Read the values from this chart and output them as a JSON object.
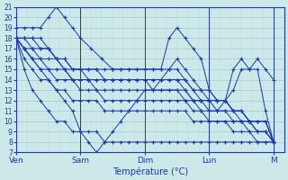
{
  "xlabel": "Température (°C)",
  "bg_color": "#cce8e8",
  "grid_major_color": "#aacccc",
  "grid_minor_color": "#bbdddd",
  "line_color": "#1a3aad",
  "ylim": [
    7,
    21
  ],
  "xlim": [
    0,
    100
  ],
  "yticks": [
    7,
    8,
    9,
    10,
    11,
    12,
    13,
    14,
    15,
    16,
    17,
    18,
    19,
    20,
    21
  ],
  "day_labels": [
    "Ven",
    "Sam",
    "Dim",
    "Lun",
    "M"
  ],
  "day_positions": [
    0,
    24,
    48,
    72,
    96
  ],
  "lines": [
    {
      "x": [
        0,
        3,
        6,
        9,
        12,
        15,
        18,
        21,
        24,
        27,
        30,
        33,
        36,
        39,
        42,
        45,
        48,
        51,
        54,
        57,
        60,
        63,
        66,
        69,
        72,
        75,
        78,
        81,
        84,
        87,
        90,
        93,
        96
      ],
      "y": [
        18,
        18,
        18,
        18,
        17,
        16,
        15,
        14,
        14,
        14,
        14,
        14,
        14,
        14,
        14,
        14,
        14,
        14,
        14,
        14,
        14,
        13,
        12,
        12,
        12,
        12,
        12,
        11,
        11,
        10,
        10,
        10,
        8
      ]
    },
    {
      "x": [
        0,
        3,
        6,
        9,
        12,
        15,
        18,
        21,
        24,
        27,
        30,
        33,
        36,
        39,
        42,
        45,
        48,
        51,
        54,
        57,
        60,
        63,
        66,
        69,
        72,
        75,
        78,
        81,
        84,
        87,
        90,
        93,
        96
      ],
      "y": [
        18,
        18,
        18,
        17,
        17,
        16,
        16,
        15,
        15,
        15,
        15,
        15,
        15,
        15,
        15,
        15,
        15,
        15,
        15,
        15,
        15,
        14,
        13,
        13,
        13,
        12,
        12,
        11,
        11,
        10,
        10,
        10,
        8
      ]
    },
    {
      "x": [
        0,
        3,
        6,
        9,
        12,
        15,
        18,
        21,
        24,
        27,
        30,
        33,
        36,
        39,
        42,
        45,
        48,
        51,
        54,
        57,
        60,
        63,
        66,
        69,
        72,
        75,
        78,
        81,
        84,
        87,
        90,
        93,
        96
      ],
      "y": [
        18,
        18,
        17,
        17,
        17,
        16,
        16,
        15,
        15,
        15,
        15,
        14,
        14,
        14,
        14,
        14,
        14,
        14,
        14,
        14,
        14,
        14,
        13,
        12,
        12,
        12,
        12,
        11,
        11,
        10,
        10,
        10,
        8
      ]
    },
    {
      "x": [
        0,
        3,
        6,
        9,
        12,
        15,
        18,
        21,
        24,
        27,
        30,
        33,
        36,
        39,
        42,
        45,
        48,
        51,
        54,
        57,
        60,
        63,
        66,
        69,
        72,
        75,
        78,
        81,
        84,
        87,
        90,
        93,
        96
      ],
      "y": [
        18,
        17,
        17,
        16,
        16,
        16,
        15,
        15,
        15,
        14,
        14,
        14,
        14,
        14,
        14,
        14,
        14,
        13,
        13,
        13,
        13,
        13,
        12,
        12,
        11,
        11,
        11,
        11,
        10,
        10,
        9,
        9,
        8
      ]
    },
    {
      "x": [
        0,
        3,
        6,
        9,
        12,
        15,
        18,
        21,
        24,
        27,
        30,
        33,
        36,
        39,
        42,
        45,
        48,
        51,
        54,
        57,
        60,
        63,
        66,
        69,
        72,
        75,
        78,
        81,
        84,
        87,
        90,
        93,
        96
      ],
      "y": [
        18,
        17,
        16,
        16,
        15,
        15,
        15,
        14,
        14,
        14,
        13,
        13,
        13,
        13,
        13,
        13,
        13,
        13,
        13,
        13,
        13,
        12,
        12,
        11,
        11,
        11,
        11,
        10,
        10,
        10,
        9,
        9,
        8
      ]
    },
    {
      "x": [
        0,
        3,
        6,
        9,
        12,
        15,
        18,
        21,
        24,
        27,
        30,
        33,
        36,
        39,
        42,
        45,
        48,
        51,
        54,
        57,
        60,
        63,
        66,
        69,
        72,
        75,
        78,
        81,
        84,
        87,
        90,
        93,
        96
      ],
      "y": [
        18,
        17,
        16,
        15,
        15,
        14,
        14,
        14,
        13,
        13,
        13,
        12,
        12,
        12,
        12,
        12,
        12,
        12,
        12,
        12,
        12,
        12,
        11,
        11,
        10,
        10,
        10,
        10,
        10,
        9,
        9,
        9,
        8
      ]
    },
    {
      "x": [
        0,
        3,
        6,
        9,
        12,
        15,
        18,
        21,
        24,
        27,
        30,
        33,
        36,
        39,
        42,
        45,
        48,
        51,
        54,
        57,
        60,
        63,
        66,
        69,
        72,
        75,
        78,
        81,
        84,
        87,
        90,
        93,
        96
      ],
      "y": [
        18,
        16,
        15,
        14,
        14,
        13,
        13,
        12,
        12,
        12,
        12,
        11,
        11,
        11,
        11,
        11,
        11,
        11,
        11,
        11,
        11,
        11,
        10,
        10,
        10,
        10,
        10,
        9,
        9,
        9,
        8,
        8,
        8
      ]
    },
    {
      "x": [
        0,
        3,
        6,
        9,
        12,
        15,
        18,
        21,
        24,
        27,
        30,
        33,
        36,
        39,
        42,
        45,
        48,
        51,
        54,
        57,
        60,
        63,
        66,
        69,
        72,
        75,
        78,
        81,
        84,
        87,
        90,
        93,
        96
      ],
      "y": [
        18,
        15,
        13,
        12,
        11,
        10,
        10,
        9,
        9,
        9,
        9,
        8,
        8,
        8,
        8,
        8,
        8,
        8,
        8,
        8,
        8,
        8,
        8,
        8,
        8,
        8,
        8,
        8,
        8,
        8,
        8,
        8,
        8
      ]
    },
    {
      "x": [
        0,
        3,
        6,
        9,
        12,
        15,
        18,
        21,
        24,
        28,
        32,
        36
      ],
      "y": [
        19,
        19,
        19,
        19,
        20,
        21,
        20,
        19,
        18,
        17,
        16,
        15
      ]
    },
    {
      "x": [
        0,
        3,
        6,
        9,
        12,
        15,
        18,
        21,
        24,
        27,
        30,
        33,
        36,
        39,
        42,
        45,
        48,
        51,
        54,
        57,
        60,
        63,
        66,
        69,
        72,
        75,
        78,
        81,
        84,
        87,
        90,
        93,
        96
      ],
      "y": [
        18,
        17,
        16,
        15,
        14,
        13,
        12,
        11,
        9,
        8,
        7,
        8,
        9,
        10,
        11,
        12,
        13,
        13,
        14,
        15,
        16,
        15,
        14,
        13,
        12,
        11,
        12,
        13,
        15,
        15,
        16,
        15,
        14
      ]
    },
    {
      "x": [
        36,
        39,
        42,
        45,
        48,
        51,
        54,
        57,
        60,
        63,
        66,
        69,
        72,
        75,
        78,
        81,
        84,
        87,
        90,
        93,
        96
      ],
      "y": [
        15,
        15,
        15,
        15,
        15,
        15,
        15,
        18,
        19,
        18,
        17,
        16,
        13,
        12,
        12,
        15,
        16,
        15,
        15,
        11,
        8
      ]
    }
  ]
}
